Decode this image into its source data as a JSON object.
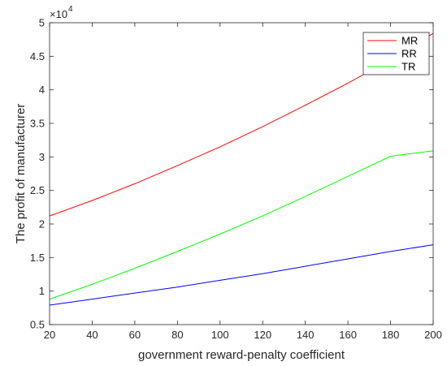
{
  "chart_data": {
    "type": "line",
    "title": "",
    "xlabel": "government reward-penalty coefficient",
    "ylabel": "The profit of manufacturer",
    "xlim": [
      20,
      200
    ],
    "ylim": [
      0.5,
      5
    ],
    "x_ticks": [
      "20",
      "40",
      "60",
      "80",
      "100",
      "120",
      "140",
      "160",
      "180",
      "200"
    ],
    "y_ticks": [
      "0.5",
      "1",
      "1.5",
      "2",
      "2.5",
      "3",
      "3.5",
      "4",
      "4.5",
      "5"
    ],
    "y_multiplier": {
      "base": "×10",
      "exponent": "4"
    },
    "grid": false,
    "legend_position": "top-right",
    "x": [
      20,
      40,
      60,
      80,
      100,
      120,
      140,
      160,
      180,
      200
    ],
    "series": [
      {
        "name": "MR",
        "color": "#ff0000",
        "values": [
          2.12,
          2.35,
          2.6,
          2.87,
          3.15,
          3.45,
          3.77,
          4.1,
          4.45,
          4.84
        ]
      },
      {
        "name": "RR",
        "color": "#0000ff",
        "values": [
          0.79,
          0.88,
          0.97,
          1.06,
          1.16,
          1.26,
          1.37,
          1.48,
          1.59,
          1.69
        ]
      },
      {
        "name": "TR",
        "color": "#00ff00",
        "values": [
          0.88,
          1.1,
          1.34,
          1.59,
          1.85,
          2.12,
          2.41,
          2.71,
          3.01,
          3.09
        ]
      }
    ]
  }
}
